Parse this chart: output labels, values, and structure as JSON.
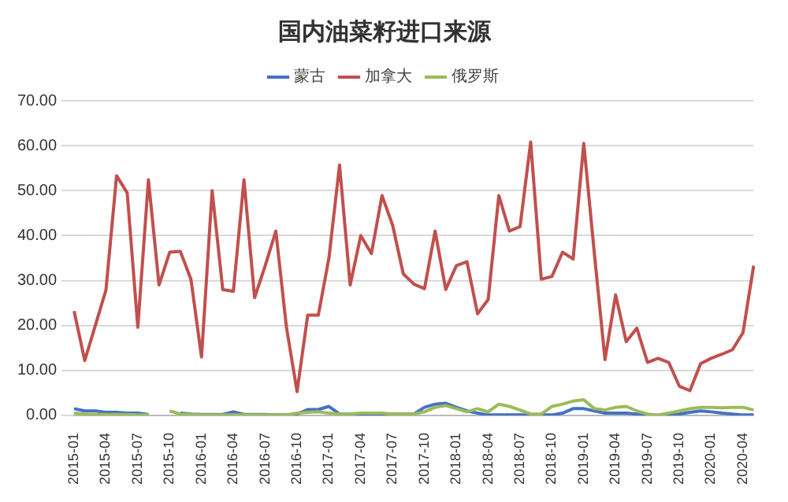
{
  "chart_data": {
    "type": "line",
    "title": "国内油菜籽进口来源",
    "categories": [
      "2015-01",
      null,
      null,
      "2015-04",
      null,
      null,
      "2015-07",
      null,
      null,
      "2015-10",
      null,
      null,
      "2016-01",
      null,
      null,
      "2016-04",
      null,
      null,
      "2016-07",
      null,
      null,
      "2016-10",
      null,
      null,
      "2017-01",
      null,
      null,
      "2017-04",
      null,
      null,
      "2017-07",
      null,
      null,
      "2017-10",
      null,
      null,
      "2018-01",
      null,
      null,
      "2018-04",
      null,
      null,
      "2018-07",
      null,
      null,
      "2018-10",
      null,
      null,
      "2019-01",
      null,
      null,
      "2019-04",
      null,
      null,
      "2019-07",
      null,
      null,
      "2019-10",
      null,
      null,
      "2020-01",
      null,
      null,
      "2020-04",
      null
    ],
    "series": [
      {
        "name": "蒙古",
        "color": "#4472c4",
        "values": [
          1.5,
          1.0,
          1.0,
          0.7,
          0.7,
          0.5,
          0.5,
          0.2,
          null,
          null,
          0.5,
          0.3,
          0.2,
          0.2,
          0.2,
          0.8,
          0.2,
          0.2,
          0.2,
          0.1,
          0.1,
          0.3,
          1.3,
          1.3,
          2.0,
          0.3,
          0.3,
          0.3,
          0.3,
          0.3,
          0.3,
          0.3,
          0.3,
          1.8,
          2.5,
          2.7,
          1.8,
          1.0,
          0.5,
          0.1,
          0.1,
          0.1,
          0.1,
          0.1,
          0.1,
          0.1,
          0.5,
          1.5,
          1.5,
          1.0,
          0.5,
          0.5,
          0.5,
          0.3,
          0.1,
          0.0,
          0.1,
          0.3,
          0.7,
          1.0,
          0.8,
          0.5,
          0.3,
          0.1,
          0.1
        ]
      },
      {
        "name": "加拿大",
        "color": "#c0504d",
        "values": [
          23.2,
          12.2,
          20,
          27.9,
          53.3,
          49.5,
          19.6,
          52.4,
          29,
          36.3,
          36.5,
          30.3,
          13,
          50,
          28,
          27.6,
          52.4,
          26.2,
          33.3,
          41,
          19.6,
          5.3,
          22.3,
          22.3,
          35,
          55.7,
          29,
          40,
          36,
          48.9,
          42.3,
          31.5,
          29.2,
          28.2,
          41,
          28,
          33.3,
          34.2,
          22.6,
          25.8,
          48.9,
          41,
          42,
          60.8,
          30.3,
          30.9,
          36.3,
          34.8,
          60.5,
          36,
          12.4,
          26.8,
          16.4,
          19.4,
          11.8,
          12.7,
          11.8,
          6.5,
          5.5,
          11.5,
          12.7,
          13.6,
          14.6,
          18.4,
          33.3
        ]
      },
      {
        "name": "俄罗斯",
        "color": "#9bbb59",
        "values": [
          0.5,
          0.3,
          0.2,
          0.2,
          0.2,
          0.2,
          0.1,
          0.1,
          null,
          1.0,
          0.3,
          0.2,
          0.1,
          0.1,
          0.1,
          0.1,
          0.1,
          0.1,
          0.1,
          0.1,
          0.1,
          0.5,
          0.7,
          0.8,
          0.5,
          0.3,
          0.3,
          0.5,
          0.5,
          0.5,
          0.3,
          0.3,
          0.3,
          0.8,
          1.8,
          2.2,
          1.5,
          0.8,
          1.5,
          0.8,
          2.5,
          2.0,
          1.2,
          0.3,
          0.3,
          2.0,
          2.5,
          3.2,
          3.5,
          1.5,
          1.2,
          1.8,
          2.0,
          1.0,
          0.3,
          0.1,
          0.5,
          1.0,
          1.5,
          1.8,
          1.8,
          1.7,
          1.8,
          1.8,
          1.2
        ]
      }
    ],
    "ylim": [
      0,
      70
    ],
    "yticks": [
      {
        "value": 0,
        "label": "0.00"
      },
      {
        "value": 10,
        "label": "10.00"
      },
      {
        "value": 20,
        "label": "20.00"
      },
      {
        "value": 30,
        "label": "30.00"
      },
      {
        "value": 40,
        "label": "40.00"
      },
      {
        "value": 50,
        "label": "50.00"
      },
      {
        "value": 60,
        "label": "60.00"
      },
      {
        "value": 70,
        "label": "70.00"
      }
    ],
    "grid": "y",
    "legend": "top"
  }
}
